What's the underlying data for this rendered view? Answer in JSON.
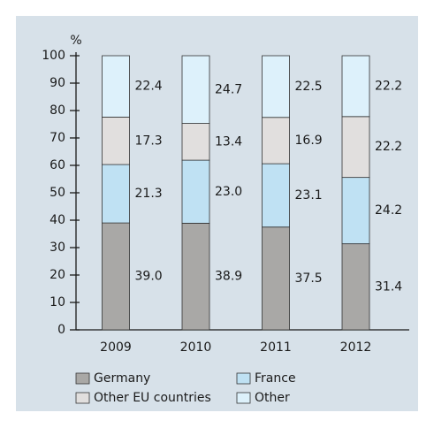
{
  "chart_data": {
    "type": "stacked_bar",
    "y_label": "%",
    "categories": [
      "2009",
      "2010",
      "2011",
      "2012"
    ],
    "series": [
      {
        "name": "Germany",
        "color": "#a9a8a6",
        "values": [
          39.0,
          38.9,
          37.5,
          31.4
        ],
        "value_labels": [
          "39.0",
          "38.9",
          "37.5",
          "31.4"
        ]
      },
      {
        "name": "France",
        "color": "#bfe1f3",
        "values": [
          21.3,
          23.0,
          23.1,
          24.2
        ],
        "value_labels": [
          "21.3",
          "23.0",
          "23.1",
          "24.2"
        ]
      },
      {
        "name": "Other EU countries",
        "color": "#e1dfde",
        "values": [
          17.3,
          13.4,
          16.9,
          22.2
        ],
        "value_labels": [
          "17.3",
          "13.4",
          "16.9",
          "22.2"
        ]
      },
      {
        "name": "Other",
        "color": "#ddf1fb",
        "values": [
          22.4,
          24.7,
          22.5,
          22.2
        ],
        "value_labels": [
          "22.4",
          "24.7",
          "22.5",
          "22.2"
        ]
      }
    ],
    "ylim": [
      0,
      100
    ],
    "yticks": [
      0,
      10,
      20,
      30,
      40,
      50,
      60,
      70,
      80,
      90,
      100
    ]
  }
}
